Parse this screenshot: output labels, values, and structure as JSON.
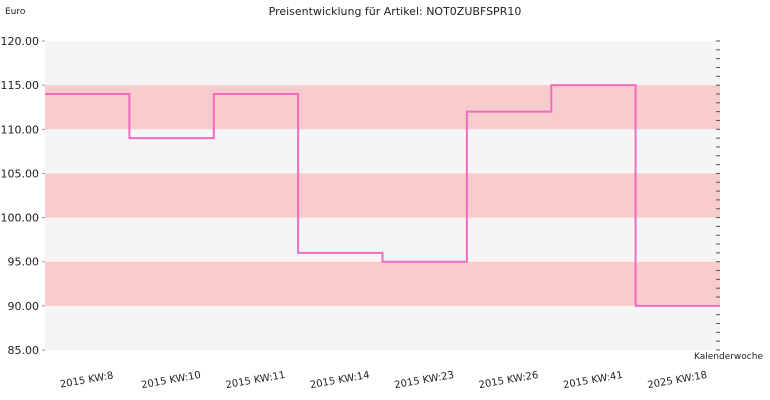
{
  "chart_data": {
    "type": "line",
    "subtype": "step",
    "title": "Preisentwicklung für Artikel: NOT0ZUBFSPR10",
    "ylabel": "Euro",
    "xlabel": "Kalenderwoche",
    "ylim": [
      85,
      120
    ],
    "y_ticks": [
      "120.00",
      "115.00",
      "110.00",
      "105.00",
      "100.00",
      "95.00",
      "90.00",
      "85.00"
    ],
    "categories": [
      "2015 KW:8",
      "2015 KW:10",
      "2015 KW:11",
      "2015 KW:14",
      "2015 KW:23",
      "2015 KW:26",
      "2015 KW:41",
      "2025 KW:18"
    ],
    "series": [
      {
        "values": [
          114,
          109,
          114,
          96,
          95,
          112,
          115,
          90
        ]
      }
    ],
    "band_ranges": [
      [
        90,
        95
      ],
      [
        100,
        105
      ],
      [
        110,
        115
      ]
    ],
    "grid": false,
    "legend": "none",
    "colors": {
      "line": "#f06cc0",
      "band": "#f8cccc",
      "plot_background": "#f5f5f5",
      "axis": "#999999",
      "text": "#222222"
    }
  }
}
